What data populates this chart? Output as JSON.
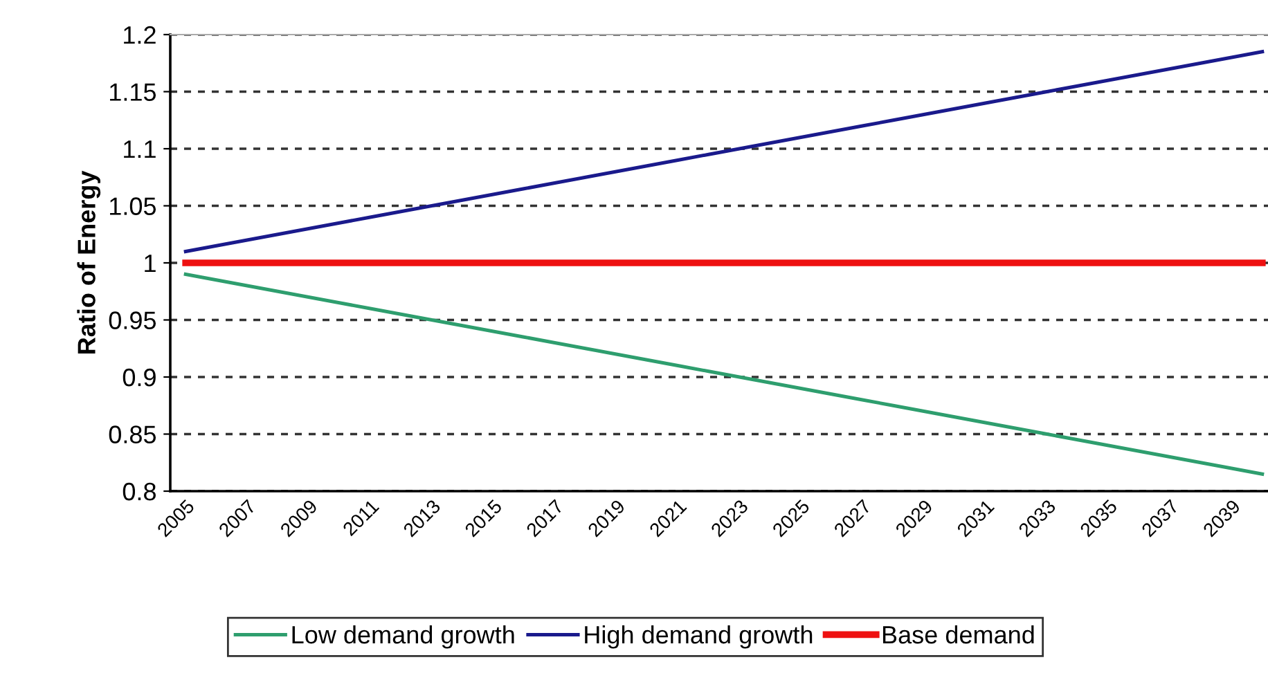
{
  "chart_data": {
    "type": "line",
    "ylabel": "Ratio of Energy",
    "categories": [
      "2005",
      null,
      "2007",
      null,
      "2009",
      null,
      "2011",
      null,
      "2013",
      null,
      "2015",
      null,
      "2017",
      null,
      "2019",
      null,
      "2021",
      null,
      "2023",
      null,
      "2025",
      null,
      "2027",
      null,
      "2029",
      null,
      "2031",
      null,
      "2033",
      null,
      "2035",
      null,
      "2037",
      null,
      "2039",
      null
    ],
    "series": [
      {
        "name": "Low demand growth",
        "color": "#2e9e6e",
        "values": [
          0.99,
          0.985,
          0.98,
          0.975,
          0.97,
          0.965,
          0.96,
          0.955,
          0.95,
          0.945,
          0.94,
          0.935,
          0.93,
          0.925,
          0.92,
          0.915,
          0.91,
          0.905,
          0.9,
          0.895,
          0.89,
          0.885,
          0.88,
          0.875,
          0.87,
          0.865,
          0.86,
          0.855,
          0.85,
          0.845,
          0.84,
          0.835,
          0.83,
          0.825,
          0.82,
          0.815
        ]
      },
      {
        "name": "High demand growth",
        "color": "#1a1a8c",
        "values": [
          1.01,
          1.015,
          1.02,
          1.025,
          1.03,
          1.035,
          1.04,
          1.045,
          1.05,
          1.055,
          1.06,
          1.065,
          1.07,
          1.075,
          1.08,
          1.085,
          1.09,
          1.095,
          1.1,
          1.105,
          1.11,
          1.115,
          1.12,
          1.125,
          1.13,
          1.135,
          1.14,
          1.145,
          1.15,
          1.155,
          1.16,
          1.165,
          1.17,
          1.175,
          1.18,
          1.185
        ]
      },
      {
        "name": "Base demand",
        "color": "#ee1111",
        "values": [
          1,
          1,
          1,
          1,
          1,
          1,
          1,
          1,
          1,
          1,
          1,
          1,
          1,
          1,
          1,
          1,
          1,
          1,
          1,
          1,
          1,
          1,
          1,
          1,
          1,
          1,
          1,
          1,
          1,
          1,
          1,
          1,
          1,
          1,
          1,
          1
        ]
      }
    ],
    "ylim": [
      0.8,
      1.2
    ],
    "yticks": [
      0.8,
      0.85,
      0.9,
      0.95,
      1,
      1.05,
      1.1,
      1.15,
      1.2
    ],
    "grid": "y",
    "legend": "bottom",
    "marker": "none",
    "line_style": "solid"
  }
}
